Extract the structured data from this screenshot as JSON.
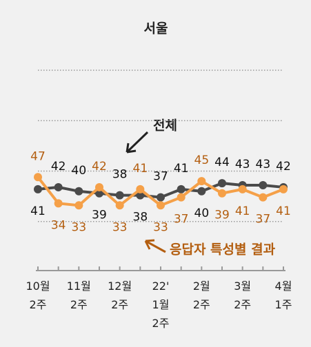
{
  "chart_data": {
    "type": "line",
    "title": "서울",
    "categories": [
      "10월\n2주",
      null,
      "11월\n2주",
      null,
      "12월\n2주",
      null,
      "22'\n1월\n2주",
      null,
      "2월\n2주",
      null,
      "3월\n2주",
      null,
      "4월\n1주"
    ],
    "series": [
      {
        "name": "전체",
        "color": "#4a4a4a",
        "values": [
          41,
          42,
          40,
          39,
          38,
          38,
          37,
          41,
          40,
          44,
          43,
          43,
          42
        ]
      },
      {
        "name": "응답자 특성별 결과",
        "color": "#f5a048",
        "values": [
          47,
          34,
          33,
          42,
          33,
          41,
          33,
          37,
          45,
          39,
          41,
          37,
          41
        ]
      }
    ],
    "ylim": [
      0,
      100
    ],
    "yticks": [
      25,
      50,
      75,
      100
    ],
    "grid": true
  }
}
